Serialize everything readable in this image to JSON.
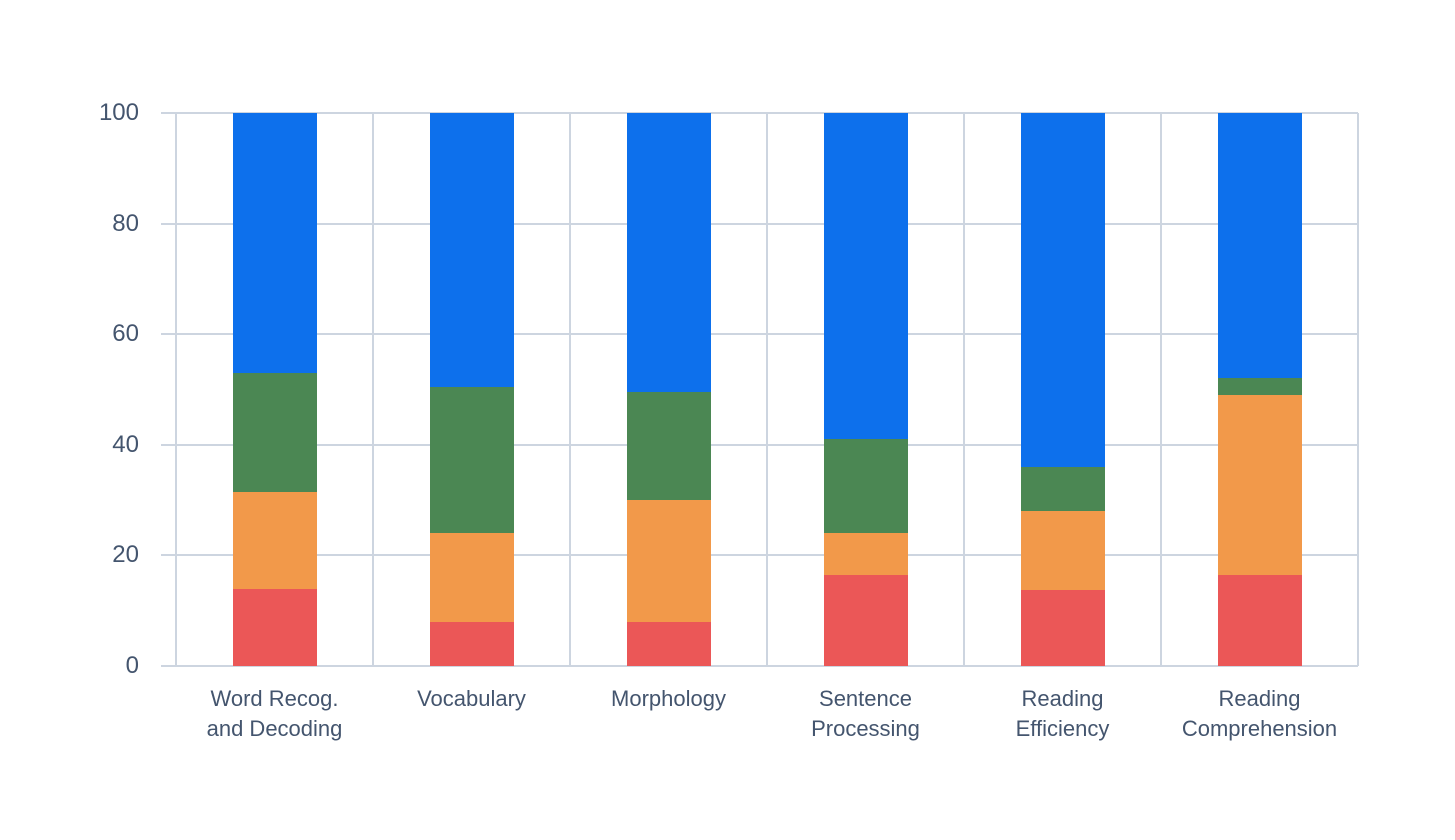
{
  "chart_data": {
    "type": "bar",
    "stacked": true,
    "orientation": "vertical",
    "title": "",
    "xlabel": "",
    "ylabel": "",
    "legend": "none",
    "grid": true,
    "ylim": [
      0,
      100
    ],
    "y_ticks": [
      0,
      20,
      40,
      60,
      80,
      100
    ],
    "categories": [
      "Word Recog. and Decoding",
      "Vocabulary",
      "Morphology",
      "Sentence Processing",
      "Reading Efficiency",
      "Reading Comprehension"
    ],
    "category_label_lines": [
      [
        "Word Recog.",
        "and Decoding"
      ],
      [
        "Vocabulary"
      ],
      [
        "Morphology"
      ],
      [
        "Sentence",
        "Processing"
      ],
      [
        "Reading",
        "Efficiency"
      ],
      [
        "Reading",
        "Comprehension"
      ]
    ],
    "series": [
      {
        "name": "red-bottom-segment",
        "color": "#eb5757",
        "values": [
          14,
          8,
          8,
          16.5,
          13.75,
          16.5
        ]
      },
      {
        "name": "orange-segment",
        "color": "#f2994a",
        "values": [
          17.5,
          16,
          22,
          7.5,
          14.25,
          32.5
        ]
      },
      {
        "name": "green-segment",
        "color": "#4b8753",
        "values": [
          21.5,
          26.5,
          19.5,
          17,
          8,
          3
        ]
      },
      {
        "name": "blue-top-segment",
        "color": "#0d70ec",
        "values": [
          47,
          49.5,
          50.5,
          59,
          64,
          48
        ]
      }
    ]
  },
  "style": {
    "background_color": "#ffffff",
    "gridline_color": "#cdd5e0",
    "axis_text_color": "#44556e"
  }
}
